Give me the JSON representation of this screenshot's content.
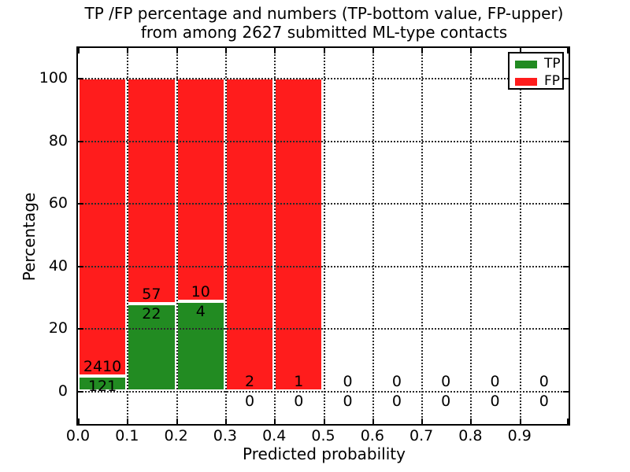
{
  "title": {
    "line1": "TP /FP percentage and numbers (TP-bottom value, FP-upper)",
    "line2": "from among 2627 submitted ML-type contacts"
  },
  "axes": {
    "x_label": "Predicted probability",
    "y_label": "Percentage",
    "x_tick_labels": [
      "0.0",
      "0.1",
      "0.2",
      "0.3",
      "0.4",
      "0.5",
      "0.6",
      "0.7",
      "0.8",
      "0.9"
    ],
    "y_tick_labels": [
      "0",
      "20",
      "40",
      "60",
      "80",
      "100"
    ],
    "y_tick_values": [
      0,
      20,
      40,
      60,
      80,
      100
    ]
  },
  "legend": {
    "position": "upper-right",
    "items": [
      {
        "label": "TP",
        "color": "#228b22"
      },
      {
        "label": "FP",
        "color": "#ff1c1c"
      }
    ]
  },
  "chart_data": {
    "type": "bar",
    "stacked": true,
    "title": "TP /FP percentage and numbers (TP-bottom value, FP-upper) from among 2627 submitted ML-type contacts",
    "xlabel": "Predicted probability",
    "ylabel": "Percentage",
    "total_contacts": 2627,
    "bin_edges": [
      0.0,
      0.1,
      0.2,
      0.3,
      0.4,
      0.5,
      0.6,
      0.7,
      0.8,
      0.9,
      1.0
    ],
    "categories": [
      "0.0-0.1",
      "0.1-0.2",
      "0.2-0.3",
      "0.3-0.4",
      "0.4-0.5",
      "0.5-0.6",
      "0.6-0.7",
      "0.7-0.8",
      "0.8-0.9",
      "0.9-1.0"
    ],
    "series": [
      {
        "name": "TP",
        "color": "#228b22",
        "counts": [
          121,
          22,
          4,
          0,
          0,
          0,
          0,
          0,
          0,
          0
        ],
        "percentages": [
          4.78,
          27.85,
          28.57,
          0,
          0,
          0,
          0,
          0,
          0,
          0
        ]
      },
      {
        "name": "FP",
        "color": "#ff1c1c",
        "counts": [
          2410,
          57,
          10,
          2,
          1,
          0,
          0,
          0,
          0,
          0
        ],
        "percentages": [
          95.22,
          72.15,
          71.43,
          100,
          100,
          0,
          0,
          0,
          0,
          0
        ]
      }
    ],
    "annotation_note": "upper number = FP count, lower number = TP count, per bin",
    "grid": true,
    "gridline_percents": [
      0,
      20,
      40,
      60,
      80,
      100
    ],
    "ylim_shown": [
      0,
      100
    ]
  }
}
